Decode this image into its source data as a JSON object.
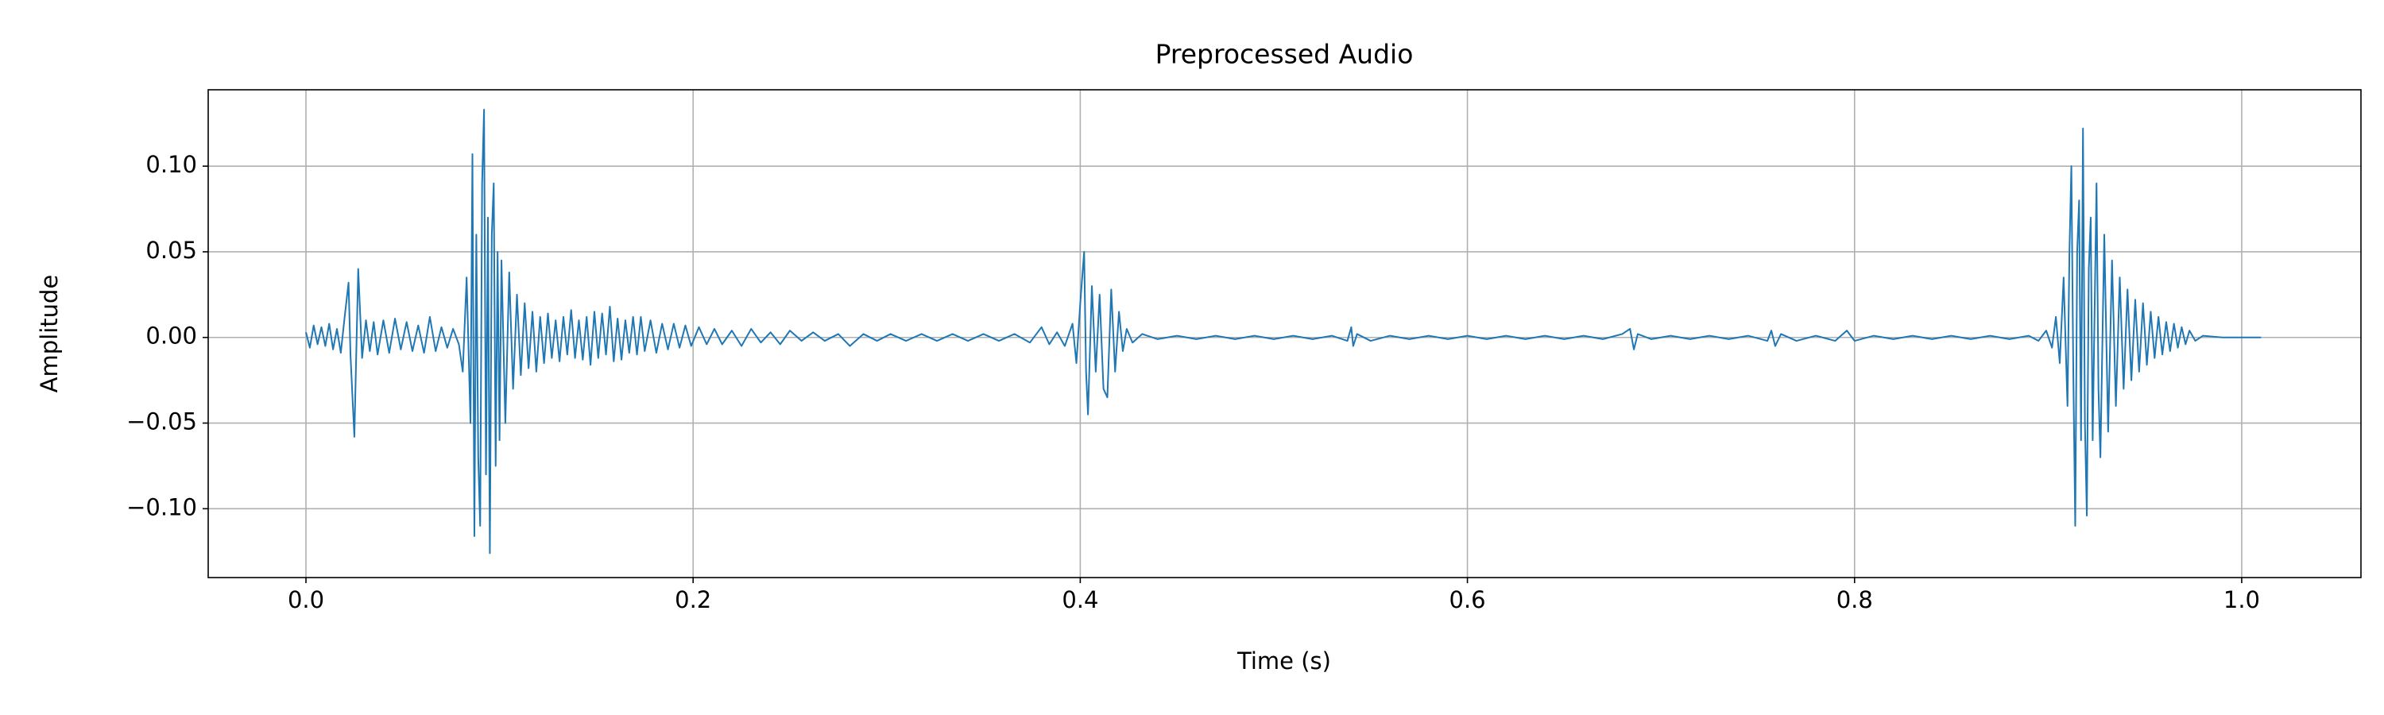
{
  "chart_data": {
    "type": "line",
    "title": "Preprocessed Audio",
    "x_label": "Time (s)",
    "y_label": "Amplitude",
    "color": "#1f77b4",
    "grid": true,
    "xlim": [
      -0.0505,
      1.0616
    ],
    "ylim": [
      -0.1402,
      0.1446
    ],
    "xticks": [
      {
        "value": 0,
        "label": "0.0"
      },
      0.2,
      0.4,
      0.6,
      0.8,
      {
        "value": 1,
        "label": "1.0"
      }
    ],
    "yticks": [
      {
        "value": -0.1,
        "label": "−0.10"
      },
      {
        "value": -0.05,
        "label": "−0.05"
      },
      {
        "value": 0,
        "label": "0.00"
      },
      {
        "value": 0.05,
        "label": "0.05"
      },
      {
        "value": 0.1,
        "label": "0.10"
      }
    ],
    "x": [
      0.0,
      0.002,
      0.004,
      0.006,
      0.008,
      0.01,
      0.012,
      0.014,
      0.016,
      0.018,
      0.02,
      0.022,
      0.023,
      0.025,
      0.027,
      0.029,
      0.031,
      0.033,
      0.035,
      0.037,
      0.04,
      0.043,
      0.046,
      0.049,
      0.052,
      0.055,
      0.058,
      0.061,
      0.064,
      0.067,
      0.07,
      0.073,
      0.076,
      0.079,
      0.081,
      0.083,
      0.085,
      0.086,
      0.087,
      0.088,
      0.089,
      0.09,
      0.091,
      0.092,
      0.093,
      0.094,
      0.095,
      0.096,
      0.097,
      0.098,
      0.099,
      0.1,
      0.101,
      0.103,
      0.105,
      0.107,
      0.109,
      0.111,
      0.113,
      0.115,
      0.117,
      0.119,
      0.121,
      0.123,
      0.125,
      0.127,
      0.129,
      0.131,
      0.133,
      0.135,
      0.137,
      0.139,
      0.141,
      0.143,
      0.145,
      0.147,
      0.149,
      0.151,
      0.153,
      0.155,
      0.157,
      0.159,
      0.161,
      0.163,
      0.165,
      0.167,
      0.169,
      0.171,
      0.173,
      0.175,
      0.178,
      0.181,
      0.184,
      0.187,
      0.19,
      0.193,
      0.196,
      0.199,
      0.203,
      0.207,
      0.211,
      0.215,
      0.22,
      0.225,
      0.23,
      0.235,
      0.24,
      0.245,
      0.25,
      0.256,
      0.262,
      0.268,
      0.275,
      0.281,
      0.288,
      0.295,
      0.302,
      0.31,
      0.318,
      0.326,
      0.334,
      0.342,
      0.35,
      0.358,
      0.366,
      0.374,
      0.38,
      0.384,
      0.388,
      0.392,
      0.396,
      0.398,
      0.4,
      0.402,
      0.403,
      0.404,
      0.406,
      0.408,
      0.41,
      0.412,
      0.414,
      0.416,
      0.418,
      0.42,
      0.422,
      0.424,
      0.427,
      0.432,
      0.44,
      0.45,
      0.46,
      0.47,
      0.48,
      0.49,
      0.5,
      0.51,
      0.52,
      0.53,
      0.538,
      0.54,
      0.541,
      0.543,
      0.55,
      0.56,
      0.57,
      0.58,
      0.59,
      0.6,
      0.61,
      0.62,
      0.63,
      0.64,
      0.65,
      0.66,
      0.67,
      0.68,
      0.684,
      0.686,
      0.688,
      0.695,
      0.705,
      0.715,
      0.725,
      0.735,
      0.745,
      0.755,
      0.757,
      0.759,
      0.762,
      0.77,
      0.78,
      0.79,
      0.796,
      0.8,
      0.81,
      0.82,
      0.83,
      0.84,
      0.85,
      0.86,
      0.87,
      0.88,
      0.89,
      0.895,
      0.899,
      0.902,
      0.904,
      0.906,
      0.908,
      0.91,
      0.911,
      0.912,
      0.913,
      0.914,
      0.915,
      0.916,
      0.917,
      0.918,
      0.919,
      0.92,
      0.921,
      0.922,
      0.923,
      0.925,
      0.926,
      0.927,
      0.929,
      0.931,
      0.933,
      0.935,
      0.937,
      0.939,
      0.941,
      0.943,
      0.945,
      0.947,
      0.949,
      0.951,
      0.953,
      0.955,
      0.957,
      0.959,
      0.961,
      0.963,
      0.965,
      0.967,
      0.969,
      0.971,
      0.973,
      0.976,
      0.98,
      0.99,
      1.0,
      1.01
    ],
    "values": [
      0.003,
      -0.006,
      0.007,
      -0.004,
      0.006,
      -0.005,
      0.008,
      -0.007,
      0.005,
      -0.009,
      0.012,
      0.032,
      -0.01,
      -0.058,
      0.04,
      -0.012,
      0.01,
      -0.008,
      0.009,
      -0.01,
      0.01,
      -0.009,
      0.011,
      -0.007,
      0.009,
      -0.008,
      0.007,
      -0.009,
      0.012,
      -0.008,
      0.006,
      -0.006,
      0.005,
      -0.004,
      -0.02,
      0.035,
      -0.05,
      0.107,
      -0.116,
      0.06,
      -0.07,
      -0.11,
      0.09,
      0.133,
      -0.08,
      0.07,
      -0.126,
      0.06,
      0.09,
      -0.075,
      0.05,
      -0.06,
      0.045,
      -0.05,
      0.038,
      -0.03,
      0.025,
      -0.022,
      0.02,
      -0.018,
      0.015,
      -0.02,
      0.012,
      -0.015,
      0.014,
      -0.012,
      0.01,
      -0.014,
      0.012,
      -0.01,
      0.016,
      -0.012,
      0.01,
      -0.013,
      0.012,
      -0.016,
      0.015,
      -0.012,
      0.014,
      -0.01,
      0.018,
      -0.014,
      0.011,
      -0.013,
      0.01,
      -0.009,
      0.012,
      -0.01,
      0.012,
      -0.008,
      0.01,
      -0.009,
      0.008,
      -0.007,
      0.008,
      -0.006,
      0.007,
      -0.005,
      0.006,
      -0.004,
      0.005,
      -0.004,
      0.004,
      -0.005,
      0.005,
      -0.003,
      0.003,
      -0.004,
      0.004,
      -0.002,
      0.003,
      -0.002,
      0.002,
      -0.005,
      0.002,
      -0.002,
      0.002,
      -0.002,
      0.002,
      -0.002,
      0.002,
      -0.002,
      0.002,
      -0.002,
      0.002,
      -0.003,
      0.006,
      -0.004,
      0.003,
      -0.005,
      0.008,
      -0.015,
      0.02,
      0.05,
      -0.02,
      -0.045,
      0.03,
      -0.02,
      0.025,
      -0.03,
      -0.035,
      0.028,
      -0.02,
      0.015,
      -0.008,
      0.005,
      -0.003,
      0.002,
      -0.001,
      0.001,
      -0.001,
      0.001,
      -0.001,
      0.001,
      -0.001,
      0.001,
      -0.001,
      0.001,
      -0.002,
      0.006,
      -0.005,
      0.002,
      -0.002,
      0.001,
      -0.001,
      0.001,
      -0.001,
      0.001,
      -0.001,
      0.001,
      -0.001,
      0.001,
      -0.001,
      0.001,
      -0.001,
      0.002,
      0.005,
      -0.007,
      0.002,
      -0.001,
      0.001,
      -0.001,
      0.001,
      -0.001,
      0.001,
      -0.002,
      0.004,
      -0.005,
      0.002,
      -0.002,
      0.001,
      -0.002,
      0.004,
      -0.002,
      0.001,
      -0.001,
      0.001,
      -0.001,
      0.001,
      -0.001,
      0.001,
      -0.001,
      0.001,
      -0.002,
      0.004,
      -0.006,
      0.012,
      -0.015,
      0.035,
      -0.04,
      0.05,
      0.1,
      -0.02,
      -0.11,
      0.05,
      0.08,
      -0.06,
      0.122,
      -0.05,
      -0.104,
      0.04,
      0.07,
      -0.06,
      0.09,
      -0.03,
      -0.07,
      0.06,
      -0.055,
      0.045,
      -0.04,
      0.035,
      -0.03,
      0.028,
      -0.025,
      0.022,
      -0.02,
      0.02,
      -0.016,
      0.015,
      -0.012,
      0.012,
      -0.01,
      0.009,
      -0.008,
      0.008,
      -0.006,
      0.006,
      -0.004,
      0.004,
      -0.002,
      0.001,
      0.0,
      0.0,
      0.0
    ]
  }
}
